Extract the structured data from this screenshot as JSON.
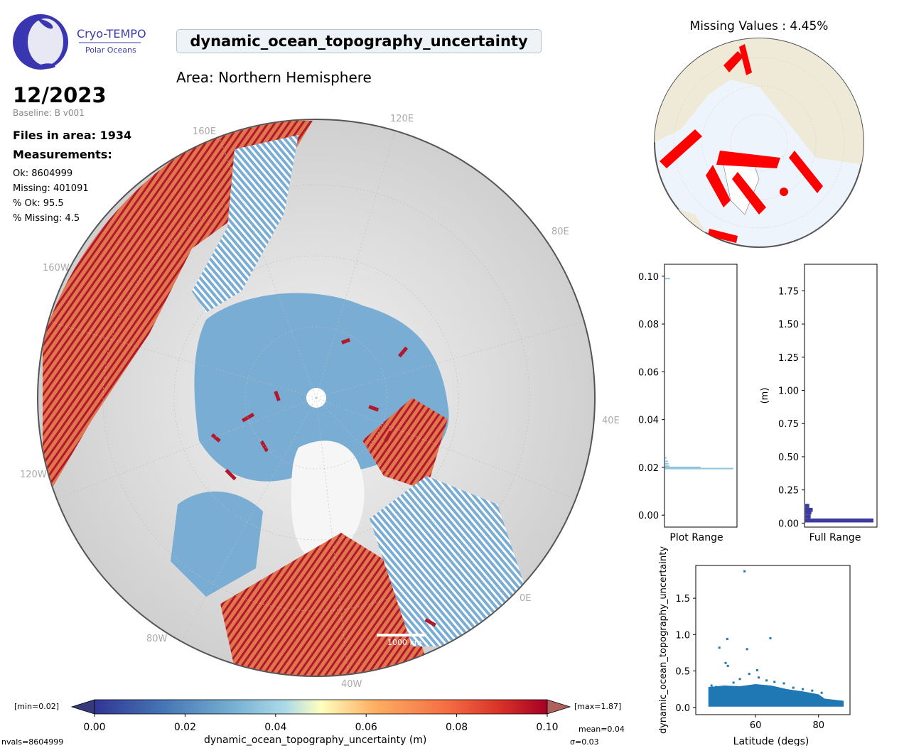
{
  "logo": {
    "line1": "Cryo-TEMPO",
    "line2": "Polar Oceans"
  },
  "header": {
    "title": "dynamic_ocean_topography_uncertainty",
    "area": "Area: Northern Hemisphere",
    "month": "12/2023",
    "baseline": "Baseline: B v001"
  },
  "summary": {
    "files": "Files in area: 1934",
    "measurements_heading": "Measurements:",
    "ok": "Ok: 8604999",
    "missing": "Missing: 401091",
    "pct_ok": "% Ok: 95.5",
    "pct_missing": "% Missing: 4.5"
  },
  "map": {
    "grid_labels": [
      "120E",
      "160E",
      "80E",
      "160W",
      "40E",
      "120W",
      "0E",
      "80W",
      "40W"
    ],
    "scale_label": "1000 km",
    "colors": {
      "ocean_low": "#7aadd4",
      "high": "#b2182b",
      "mid": "#f4a582",
      "land": "#dcdcdc"
    }
  },
  "missing_map": {
    "title": "Missing Values : 4.45%",
    "marker_color": "#ff0000",
    "land_color": "#efead8",
    "ocean_color": "#eef4fb"
  },
  "colorbar": {
    "min_label": "[min=0.02]",
    "max_label": "[max=1.87]",
    "ticks": [
      "0.00",
      "0.02",
      "0.04",
      "0.06",
      "0.08",
      "0.10"
    ],
    "label": "dynamic_ocean_topography_uncertainty (m)",
    "mean": "mean=0.04",
    "sigma": "σ=0.03",
    "nvals": "nvals=8604999",
    "colormap": "RdYlBu_r"
  },
  "chart_data": [
    {
      "type": "bar",
      "orientation": "horizontal",
      "title": "Plot Range",
      "xlabel": "Plot Range",
      "ylabel": "",
      "ylim": [
        -0.005,
        0.105
      ],
      "yticks": [
        "0.00",
        "0.02",
        "0.04",
        "0.06",
        "0.08",
        "0.10"
      ],
      "bins": [
        {
          "y": 0.0195,
          "count": 1.0
        },
        {
          "y": 0.02,
          "count": 0.52
        },
        {
          "y": 0.0205,
          "count": 0.06
        },
        {
          "y": 0.0215,
          "count": 0.05
        },
        {
          "y": 0.0225,
          "count": 0.04
        },
        {
          "y": 0.024,
          "count": 0.02
        },
        {
          "y": 0.099,
          "count": 0.07
        }
      ],
      "color": "#92c5de"
    },
    {
      "type": "bar",
      "orientation": "horizontal",
      "title": "Full Range",
      "xlabel": "Full Range",
      "ylabel": "(m)",
      "ylim": [
        -0.03,
        1.95
      ],
      "yticks": [
        "0.00",
        "0.25",
        "0.50",
        "0.75",
        "1.00",
        "1.25",
        "1.50",
        "1.75"
      ],
      "bins": [
        {
          "y": 0.02,
          "count": 1.0
        },
        {
          "y": 0.05,
          "count": 0.08
        },
        {
          "y": 0.08,
          "count": 0.09
        },
        {
          "y": 0.1,
          "count": 0.11
        },
        {
          "y": 0.13,
          "count": 0.06
        }
      ],
      "color": "#3b3ba0"
    },
    {
      "type": "scatter",
      "xlabel": "Latitude (degs)",
      "ylabel": "dynamic_ocean_topography_uncertainty",
      "xlim": [
        41,
        90
      ],
      "ylim": [
        -0.1,
        1.95
      ],
      "xticks": [
        "60",
        "80"
      ],
      "yticks": [
        "0.0",
        "0.5",
        "1.0",
        "1.5"
      ],
      "color": "#1f77b4",
      "band": {
        "x_start": 45,
        "x_end": 88,
        "y_low": 0.01
      },
      "points": [
        {
          "x": 56.5,
          "y": 1.87
        },
        {
          "x": 48.5,
          "y": 0.82
        },
        {
          "x": 51.0,
          "y": 0.94
        },
        {
          "x": 57.3,
          "y": 0.8
        },
        {
          "x": 64.7,
          "y": 0.95
        },
        {
          "x": 50.5,
          "y": 0.61
        },
        {
          "x": 51.2,
          "y": 0.57
        },
        {
          "x": 60.5,
          "y": 0.51
        },
        {
          "x": 58.0,
          "y": 0.46
        },
        {
          "x": 55.0,
          "y": 0.39
        },
        {
          "x": 61.0,
          "y": 0.41
        },
        {
          "x": 63.5,
          "y": 0.37
        },
        {
          "x": 66.0,
          "y": 0.35
        },
        {
          "x": 53.0,
          "y": 0.34
        },
        {
          "x": 69.0,
          "y": 0.33
        },
        {
          "x": 46.0,
          "y": 0.3
        },
        {
          "x": 47.5,
          "y": 0.28
        },
        {
          "x": 72.0,
          "y": 0.27
        },
        {
          "x": 75.0,
          "y": 0.25
        },
        {
          "x": 78.0,
          "y": 0.23
        },
        {
          "x": 81.0,
          "y": 0.2
        }
      ],
      "envelope": [
        {
          "x": 45,
          "y": 0.28
        },
        {
          "x": 50,
          "y": 0.3
        },
        {
          "x": 55,
          "y": 0.29
        },
        {
          "x": 60,
          "y": 0.32
        },
        {
          "x": 65,
          "y": 0.3
        },
        {
          "x": 70,
          "y": 0.25
        },
        {
          "x": 75,
          "y": 0.22
        },
        {
          "x": 80,
          "y": 0.18
        },
        {
          "x": 82,
          "y": 0.12
        },
        {
          "x": 88,
          "y": 0.09
        }
      ]
    }
  ]
}
